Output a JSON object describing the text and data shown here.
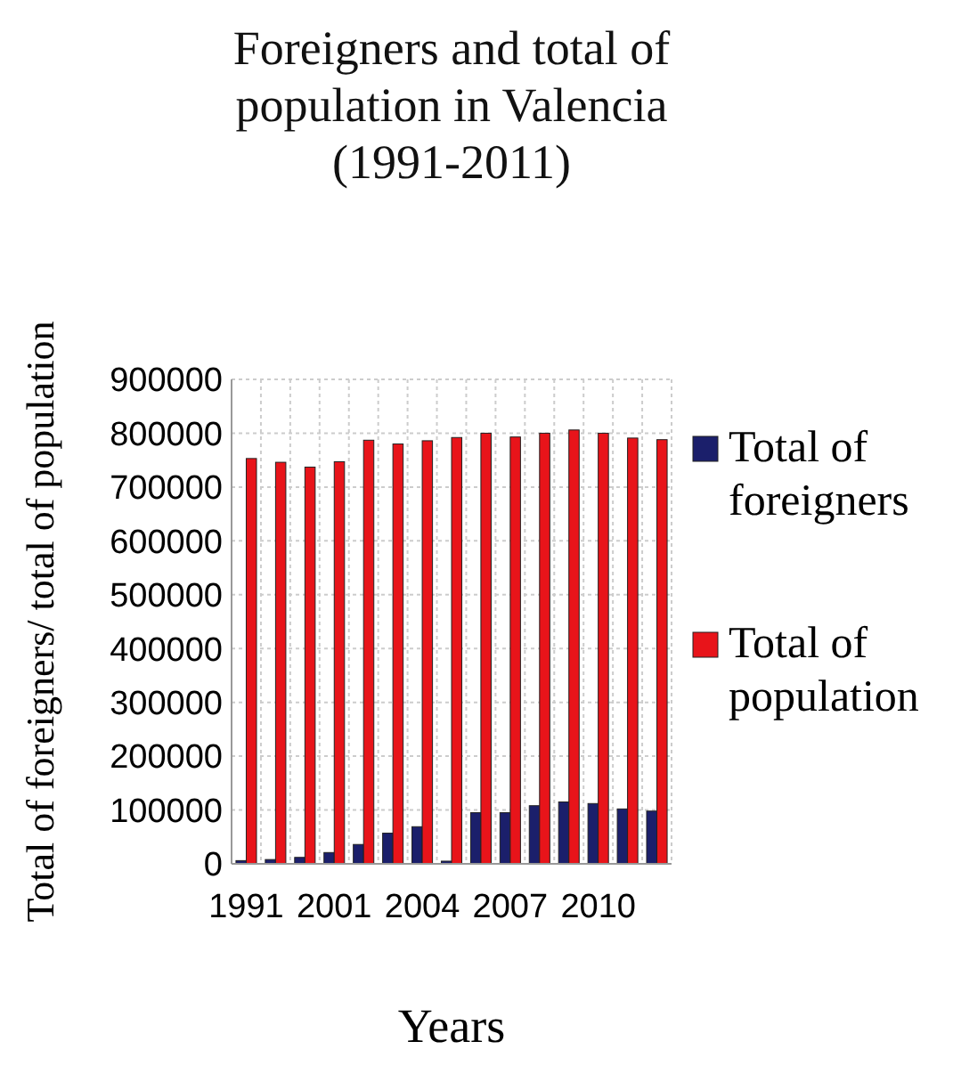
{
  "chart_data": {
    "type": "bar",
    "title": "Foreigners and total of population in Valencia (1991-2011)",
    "xlabel": "Years",
    "ylabel": "Total of foreigners/ total of population",
    "categories": [
      "1991",
      null,
      null,
      "2001",
      null,
      null,
      "2004",
      null,
      null,
      "2007",
      null,
      null,
      "2010",
      null,
      null
    ],
    "series": [
      {
        "name": "Total of foreigners",
        "color": "#1b1f6b",
        "values": [
          6000,
          8000,
          12000,
          21000,
          36000,
          57000,
          69000,
          5000,
          95000,
          95000,
          108000,
          115000,
          112000,
          102000,
          98000
        ]
      },
      {
        "name": "Total of population",
        "color": "#e8141a",
        "values": [
          753000,
          746000,
          737000,
          747000,
          787000,
          780000,
          786000,
          792000,
          800000,
          793000,
          800000,
          806000,
          800000,
          791000,
          788000
        ]
      }
    ],
    "ylim": [
      0,
      900000
    ],
    "yticks": [
      0,
      100000,
      200000,
      300000,
      400000,
      500000,
      600000,
      700000,
      800000,
      900000
    ],
    "grid": true,
    "legend": "right"
  }
}
